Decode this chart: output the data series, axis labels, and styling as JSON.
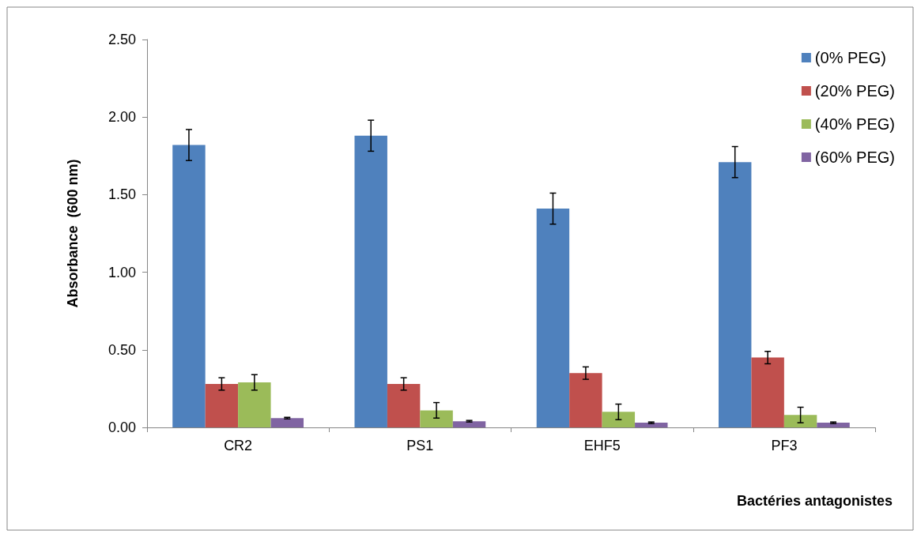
{
  "chart_data": {
    "type": "bar",
    "xlabel": "Bactéries antagonistes",
    "ylabel": "Absorbance  (600 nm)",
    "categories": [
      "CR2",
      "PS1",
      "EHF5",
      "PF3"
    ],
    "series": [
      {
        "name": "(0% PEG)",
        "color": "#4f81bd",
        "values": [
          1.82,
          1.88,
          1.41,
          1.71
        ],
        "errors": [
          0.1,
          0.1,
          0.1,
          0.1
        ]
      },
      {
        "name": "(20% PEG)",
        "color": "#c0504d",
        "values": [
          0.28,
          0.28,
          0.35,
          0.45
        ],
        "errors": [
          0.04,
          0.04,
          0.04,
          0.04
        ]
      },
      {
        "name": "(40% PEG)",
        "color": "#9bbb59",
        "values": [
          0.29,
          0.11,
          0.1,
          0.08
        ],
        "errors": [
          0.05,
          0.05,
          0.05,
          0.05
        ]
      },
      {
        "name": "(60% PEG)",
        "color": "#8064a2",
        "values": [
          0.06,
          0.04,
          0.03,
          0.03
        ],
        "errors": [
          0.005,
          0.005,
          0.005,
          0.005
        ]
      }
    ],
    "ylim": [
      0,
      2.5
    ],
    "yticks": [
      {
        "value": 0,
        "label": "0.00"
      },
      {
        "value": 0.5,
        "label": "0.50"
      },
      {
        "value": 1,
        "label": "1.00"
      },
      {
        "value": 1.5,
        "label": "1.50"
      },
      {
        "value": 2,
        "label": "2.00"
      },
      {
        "value": 2.5,
        "label": "2.50"
      }
    ],
    "grid": false,
    "legend": "top right"
  }
}
